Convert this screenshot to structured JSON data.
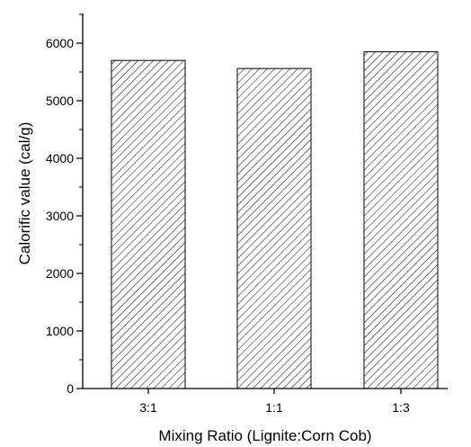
{
  "chart_data": {
    "type": "bar",
    "categories": [
      "3:1",
      "1:1",
      "1:3"
    ],
    "values": [
      5700,
      5560,
      5850
    ],
    "xlabel": "Mixing Ratio (Lignite:Corn Cob)",
    "ylabel": "Calorific value (cal/g)",
    "ylim": [
      0,
      6600
    ],
    "yticks": [
      0,
      1000,
      2000,
      3000,
      4000,
      5000,
      6000
    ],
    "yticks_minor": [
      500,
      1500,
      2500,
      3500,
      4500,
      5500,
      6500
    ],
    "bar_fill": "hatched diagonal lines",
    "bar_color": "#000000",
    "grid": false,
    "legend": "none"
  }
}
